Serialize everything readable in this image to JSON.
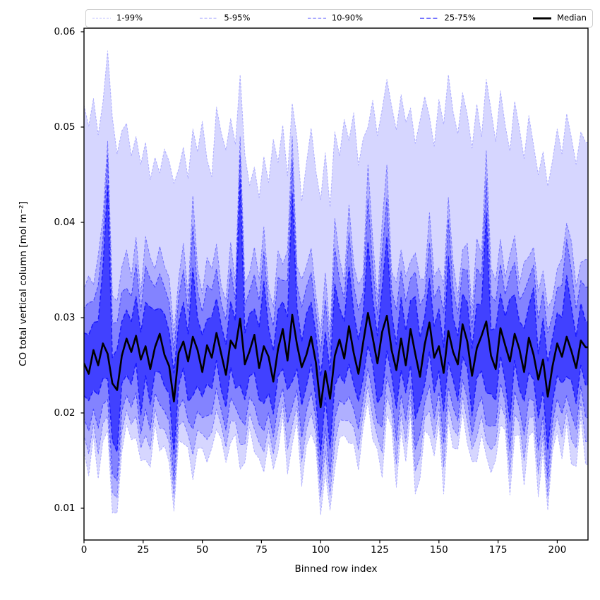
{
  "figure": {
    "xlabel": "Binned row index",
    "ylabel": "CO total vertical column [mol m⁻²]"
  },
  "legend": {
    "entries": [
      {
        "label": "1-99%",
        "stroke": "rgba(0,0,255,0.25)",
        "dash": "3 2",
        "width": 1.1
      },
      {
        "label": "5-95%",
        "stroke": "rgba(0,0,255,0.40)",
        "dash": "4 2.5",
        "width": 1.1
      },
      {
        "label": "10-90%",
        "stroke": "rgba(0,0,255,0.55)",
        "dash": "4.5 2.8",
        "width": 1.25
      },
      {
        "label": "25-75%",
        "stroke": "rgba(0,0,255,0.72)",
        "dash": "6 3.2",
        "width": 1.6
      },
      {
        "label": "Median",
        "stroke": "#000000",
        "dash": "",
        "width": 3
      }
    ]
  },
  "chart_data": {
    "type": "area",
    "title": "",
    "xlabel": "Binned row index",
    "ylabel": "CO total vertical column [mol m⁻²]",
    "xlim": [
      0,
      213
    ],
    "ylim": [
      0.0066,
      0.0604
    ],
    "grid": false,
    "legend_position": "top-horizontal",
    "x_ticks": [
      0,
      25,
      50,
      75,
      100,
      125,
      150,
      175,
      200
    ],
    "y_ticks": [
      0.01,
      0.02,
      0.03,
      0.04,
      0.05,
      0.06
    ],
    "x_start": 0,
    "x_step": 2,
    "value_scale": 0.001,
    "series": [
      {
        "name": "p01",
        "values": [
          16.0,
          13.4,
          17.6,
          13.1,
          17.0,
          18.2,
          9.5,
          9.5,
          15.9,
          18.9,
          17.2,
          17.4,
          15.0,
          15.1,
          14.3,
          18.9,
          16.0,
          16.6,
          14.8,
          9.7,
          17.1,
          16.8,
          16.4,
          13.0,
          16.3,
          16.3,
          14.8,
          16.3,
          18.3,
          17.3,
          14.8,
          16.9,
          17.8,
          14.1,
          14.8,
          18.5,
          15.9,
          15.2,
          13.8,
          17.0,
          14.1,
          16.0,
          19.8,
          13.6,
          16.7,
          19.2,
          12.3,
          16.6,
          17.9,
          16.4,
          9.3,
          13.7,
          9.8,
          14.1,
          17.4,
          17.7,
          16.8,
          16.8,
          14.0,
          18.5,
          21.3,
          17.2,
          16.2,
          13.2,
          19.9,
          18.6,
          12.2,
          18.3,
          14.9,
          19.9,
          11.5,
          13.1,
          18.2,
          17.6,
          15.5,
          19.0,
          11.5,
          19.1,
          16.3,
          16.2,
          20.1,
          16.8,
          14.9,
          14.9,
          17.8,
          15.5,
          13.7,
          15.1,
          18.8,
          18.2,
          11.4,
          17.6,
          17.7,
          12.4,
          17.6,
          18.1,
          11.2,
          16.1,
          9.8,
          16.0,
          18.1,
          15.2,
          19.0,
          14.6,
          14.4,
          19.6,
          14.6
        ]
      },
      {
        "name": "p05",
        "values": [
          17.6,
          15.7,
          18.9,
          15.7,
          18.9,
          19.7,
          11.6,
          11.1,
          18.0,
          20.3,
          18.8,
          19.7,
          16.3,
          17.7,
          16.2,
          20.4,
          18.4,
          18.3,
          16.9,
          11.2,
          18.7,
          19.1,
          17.7,
          15.6,
          18.2,
          17.8,
          17.2,
          18.0,
          20.4,
          18.7,
          16.4,
          19.2,
          19.1,
          16.7,
          16.7,
          20.0,
          18.3,
          16.9,
          15.9,
          18.4,
          15.7,
          18.3,
          21.1,
          16.2,
          18.6,
          20.7,
          14.9,
          18.3,
          20.0,
          17.8,
          11.2,
          16.0,
          11.4,
          16.7,
          19.3,
          19.2,
          19.2,
          18.5,
          16.1,
          19.9,
          22.9,
          19.5,
          17.5,
          15.8,
          21.8,
          20.1,
          14.6,
          20.0,
          17.0,
          21.3,
          13.9,
          15.4,
          19.5,
          20.2,
          17.4,
          20.5,
          14.3,
          20.8,
          18.4,
          17.6,
          21.7,
          19.1,
          16.2,
          17.5,
          19.7,
          17.0,
          16.1,
          16.8,
          20.9,
          19.6,
          13.6,
          19.9,
          19.0,
          15.0,
          19.5,
          19.6,
          13.6,
          17.8,
          11.2,
          17.4,
          19.7,
          17.5,
          20.3,
          17.2,
          16.3,
          21.1,
          17.0
        ]
      },
      {
        "name": "p10",
        "values": [
          19.4,
          18.1,
          20.4,
          18.4,
          20.9,
          21.4,
          13.6,
          12.9,
          20.2,
          21.9,
          20.6,
          22.1,
          17.8,
          20.4,
          18.2,
          22.1,
          20.9,
          20.2,
          19.1,
          12.9,
          20.5,
          21.5,
          19.2,
          18.3,
          20.2,
          19.5,
          19.7,
          19.9,
          22.6,
          20.3,
          18.2,
          21.6,
          20.6,
          19.4,
          18.7,
          21.7,
          20.8,
          18.8,
          18.1,
          20.0,
          17.5,
          20.7,
          22.6,
          18.9,
          20.6,
          22.4,
          17.4,
          20.2,
          22.2,
          19.4,
          13.0,
          18.4,
          13.4,
          19.4,
          21.3,
          20.9,
          21.7,
          20.4,
          18.3,
          21.5,
          24.7,
          21.9,
          19.0,
          18.5,
          23.8,
          21.8,
          17.1,
          21.9,
          19.2,
          22.9,
          16.2,
          17.8,
          21.0,
          22.9,
          19.4,
          22.2,
          16.8,
          22.7,
          20.6,
          19.2,
          23.5,
          21.5,
          17.7,
          20.2,
          21.7,
          18.7,
          18.6,
          18.7,
          23.1,
          21.2,
          16.0,
          22.3,
          20.5,
          17.7,
          21.5,
          21.3,
          16.1,
          19.7,
          13.1,
          19.0,
          21.5,
          19.9,
          21.8,
          19.9,
          18.3,
          22.8,
          19.5
        ]
      },
      {
        "name": "p25",
        "values": [
          21.8,
          21.3,
          22.4,
          21.9,
          23.6,
          23.6,
          17.1,
          15.9,
          23.1,
          24.0,
          23.0,
          25.3,
          19.8,
          23.9,
          20.9,
          24.3,
          24.3,
          22.8,
          22.0,
          15.7,
          22.9,
          24.7,
          21.2,
          21.8,
          22.9,
          21.7,
          23.1,
          22.5,
          25.5,
          22.4,
          20.6,
          24.8,
          22.6,
          22.9,
          21.4,
          23.9,
          24.2,
          21.4,
          21.0,
          22.1,
          19.9,
          23.9,
          24.6,
          22.4,
          23.3,
          24.6,
          20.8,
          22.8,
          25.1,
          21.5,
          15.6,
          21.6,
          16.3,
          22.9,
          24.0,
          23.1,
          25.1,
          23.0,
          21.2,
          23.6,
          27.1,
          25.1,
          21.0,
          22.0,
          26.5,
          24.0,
          20.5,
          24.5,
          22.1,
          25.0,
          19.4,
          21.0,
          23.0,
          26.4,
          22.1,
          24.4,
          20.2,
          25.3,
          23.5,
          21.3,
          25.9,
          24.7,
          19.7,
          23.7,
          24.4,
          22.1,
          22.0,
          21.3,
          26.0,
          23.3,
          19.1,
          25.5,
          22.5,
          21.2,
          24.2,
          23.5,
          19.5,
          22.3,
          16.1,
          21.1,
          23.9,
          23.1,
          23.8,
          23.4,
          21.0,
          25.0,
          22.9
        ]
      },
      {
        "name": "median",
        "values": [
          25.2,
          24.1,
          26.6,
          25.0,
          27.3,
          26.2,
          23.1,
          22.4,
          26.0,
          27.8,
          26.4,
          28.1,
          25.6,
          27.0,
          24.6,
          26.9,
          28.3,
          26.1,
          24.9,
          21.2,
          26.3,
          27.5,
          25.4,
          28.0,
          26.6,
          24.3,
          27.1,
          25.8,
          28.4,
          26.2,
          24.0,
          27.6,
          26.8,
          29.9,
          25.1,
          26.5,
          28.2,
          24.7,
          27.0,
          25.9,
          23.3,
          26.7,
          28.8,
          25.5,
          30.3,
          27.2,
          24.8,
          26.1,
          28.0,
          25.3,
          20.6,
          24.4,
          21.5,
          26.0,
          27.7,
          25.7,
          29.1,
          26.3,
          24.1,
          27.4,
          30.5,
          27.9,
          25.2,
          28.5,
          30.2,
          26.6,
          24.5,
          27.8,
          25.0,
          28.8,
          26.2,
          23.8,
          27.2,
          29.5,
          25.8,
          27.0,
          24.2,
          28.6,
          26.4,
          25.1,
          29.3,
          27.5,
          23.9,
          26.8,
          28.1,
          29.6,
          26.0,
          24.6,
          28.9,
          27.1,
          25.4,
          28.3,
          26.7,
          24.3,
          27.9,
          26.1,
          23.5,
          25.6,
          21.7,
          24.9,
          27.3,
          25.9,
          28.0,
          26.5,
          24.7,
          27.6,
          26.9
        ]
      },
      {
        "name": "p75",
        "values": [
          28.4,
          28.2,
          29.5,
          29.6,
          35.3,
          44.0,
          25.8,
          26.7,
          29.6,
          30.8,
          29.6,
          32.2,
          28.5,
          31.6,
          31.1,
          30.8,
          31.0,
          30.4,
          28.5,
          24.2,
          29.5,
          31.6,
          28.3,
          35.2,
          29.9,
          28.2,
          29.8,
          30.1,
          32.0,
          29.2,
          27.2,
          31.7,
          29.7,
          44.5,
          28.4,
          30.4,
          30.9,
          29.0,
          33.8,
          28.9,
          26.5,
          30.8,
          31.7,
          30.1,
          43.0,
          31.1,
          27.5,
          30.4,
          31.6,
          28.3,
          23.8,
          28.5,
          24.4,
          33.5,
          31.0,
          29.6,
          35.3,
          30.6,
          27.7,
          30.4,
          38.0,
          32.0,
          28.1,
          33.1,
          38.5,
          30.5,
          27.2,
          32.1,
          28.6,
          31.8,
          32.2,
          27.9,
          30.1,
          34.1,
          29.1,
          30.9,
          26.9,
          36.4,
          30.0,
          28.1,
          32.5,
          31.6,
          26.8,
          31.4,
          31.4,
          41.0,
          28.7,
          28.9,
          32.5,
          30.1,
          32.0,
          32.4,
          29.6,
          28.9,
          31.2,
          33.1,
          26.2,
          29.9,
          25.3,
          27.9,
          30.5,
          30.0,
          34.4,
          31.1,
          28.0,
          31.5,
          29.6
        ]
      },
      {
        "name": "p90",
        "values": [
          31.0,
          31.6,
          31.7,
          33.4,
          38.2,
          47.0,
          29.4,
          29.5,
          32.7,
          33.1,
          32.2,
          35.6,
          30.7,
          35.4,
          34.0,
          33.2,
          34.6,
          33.2,
          31.6,
          26.5,
          32.1,
          35.0,
          30.5,
          39.7,
          32.8,
          30.6,
          33.4,
          32.9,
          35.1,
          31.5,
          29.8,
          35.1,
          31.9,
          47.0,
          31.3,
          32.8,
          34.5,
          31.8,
          36.9,
          31.2,
          29.1,
          34.2,
          33.9,
          33.9,
          46.5,
          33.5,
          31.1,
          33.2,
          34.7,
          30.6,
          26.4,
          31.9,
          26.6,
          37.3,
          33.9,
          32.0,
          38.9,
          33.4,
          30.8,
          32.7,
          42.5,
          35.4,
          30.3,
          36.9,
          42.5,
          32.9,
          30.8,
          34.9,
          31.7,
          34.1,
          34.8,
          31.3,
          32.3,
          37.9,
          32.0,
          33.3,
          30.5,
          40.4,
          33.1,
          30.4,
          35.1,
          35.0,
          29.0,
          35.2,
          34.3,
          44.5,
          32.3,
          31.7,
          35.6,
          32.4,
          34.6,
          35.8,
          31.8,
          32.7,
          34.1,
          35.5,
          29.8,
          32.7,
          28.4,
          30.2,
          33.1,
          33.4,
          38.2,
          34.9,
          30.9,
          33.9,
          33.2
        ]
      },
      {
        "name": "p95",
        "values": [
          33.0,
          34.4,
          33.4,
          36.5,
          40.5,
          48.5,
          32.3,
          31.7,
          35.3,
          37.1,
          34.2,
          38.4,
          32.4,
          38.5,
          36.3,
          35.1,
          37.5,
          35.4,
          34.2,
          28.3,
          34.1,
          37.8,
          32.2,
          42.8,
          35.1,
          32.5,
          36.3,
          35.1,
          37.7,
          33.3,
          31.8,
          37.9,
          33.6,
          49.0,
          33.6,
          34.7,
          37.4,
          34.0,
          39.5,
          33.0,
          31.1,
          37.0,
          35.6,
          37.0,
          49.0,
          35.4,
          34.0,
          35.4,
          37.3,
          32.4,
          28.4,
          34.7,
          28.3,
          40.4,
          36.2,
          33.9,
          41.8,
          35.6,
          33.4,
          34.5,
          46.0,
          38.2,
          32.0,
          40.0,
          46.0,
          34.8,
          33.7,
          37.1,
          34.3,
          35.9,
          36.8,
          34.1,
          34.0,
          41.0,
          34.3,
          35.2,
          33.4,
          42.6,
          35.7,
          32.2,
          37.1,
          37.8,
          30.7,
          38.3,
          36.6,
          47.5,
          35.2,
          33.9,
          38.2,
          34.2,
          36.6,
          38.6,
          33.5,
          35.8,
          36.4,
          37.4,
          32.7,
          34.9,
          31.0,
          32.0,
          35.1,
          36.2,
          39.9,
          38.0,
          33.2,
          35.8,
          36.1
        ]
      },
      {
        "name": "p99",
        "values": [
          52.3,
          50.1,
          53.0,
          49.2,
          52.6,
          58.0,
          51.0,
          47.2,
          49.6,
          50.4,
          47.0,
          49.0,
          46.1,
          48.4,
          44.5,
          46.8,
          45.2,
          47.7,
          46.4,
          44.1,
          45.6,
          47.9,
          44.6,
          49.8,
          47.4,
          50.6,
          46.6,
          44.8,
          52.1,
          49.4,
          47.6,
          50.9,
          48.2,
          55.5,
          47.1,
          43.9,
          45.8,
          42.6,
          46.9,
          44.2,
          48.7,
          46.3,
          50.2,
          44.9,
          52.5,
          48.9,
          42.2,
          46.2,
          49.9,
          45.4,
          42.4,
          47.3,
          41.6,
          49.5,
          47.0,
          50.8,
          48.6,
          51.5,
          46.0,
          48.8,
          50.0,
          52.8,
          49.1,
          51.9,
          55.0,
          52.2,
          49.7,
          53.4,
          50.5,
          52.0,
          48.3,
          50.7,
          53.2,
          51.1,
          48.0,
          52.9,
          50.3,
          55.5,
          51.6,
          49.3,
          53.6,
          51.3,
          47.8,
          52.4,
          49.0,
          55.0,
          51.8,
          48.5,
          53.8,
          50.2,
          47.5,
          52.7,
          49.9,
          46.7,
          51.2,
          48.1,
          45.0,
          47.4,
          43.8,
          46.5,
          49.8,
          47.2,
          51.4,
          48.9,
          46.1,
          49.5,
          48.4
        ]
      },
      {
        "name": "p99",
        "note": ""
      }
    ],
    "bands": [
      {
        "label": "1-99%",
        "lower": "p01",
        "upper": "p99",
        "fill": "rgba(0,0,255,0.16)",
        "line_stroke": "rgba(0,0,255,0.25)",
        "line_dash": "3 2",
        "line_width": 1.0
      },
      {
        "label": "5-95%",
        "lower": "p05",
        "upper": "p95",
        "fill": "rgba(0,0,255,0.18)",
        "line_stroke": "rgba(0,0,255,0.40)",
        "line_dash": "4 2.5",
        "line_width": 1.0
      },
      {
        "label": "10-90%",
        "lower": "p10",
        "upper": "p90",
        "fill": "rgba(0,0,255,0.25)",
        "line_stroke": "rgba(0,0,255,0.55)",
        "line_dash": "4.5 2.8",
        "line_width": 1.15
      },
      {
        "label": "25-75%",
        "lower": "p25",
        "upper": "p75",
        "fill": "rgba(0,0,255,0.50)",
        "line_stroke": "rgba(0,0,255,0.72)",
        "line_dash": "6 3.2",
        "line_width": 1.5
      }
    ],
    "median_line": {
      "series": "median",
      "stroke": "#000000",
      "width": 2.6
    }
  }
}
